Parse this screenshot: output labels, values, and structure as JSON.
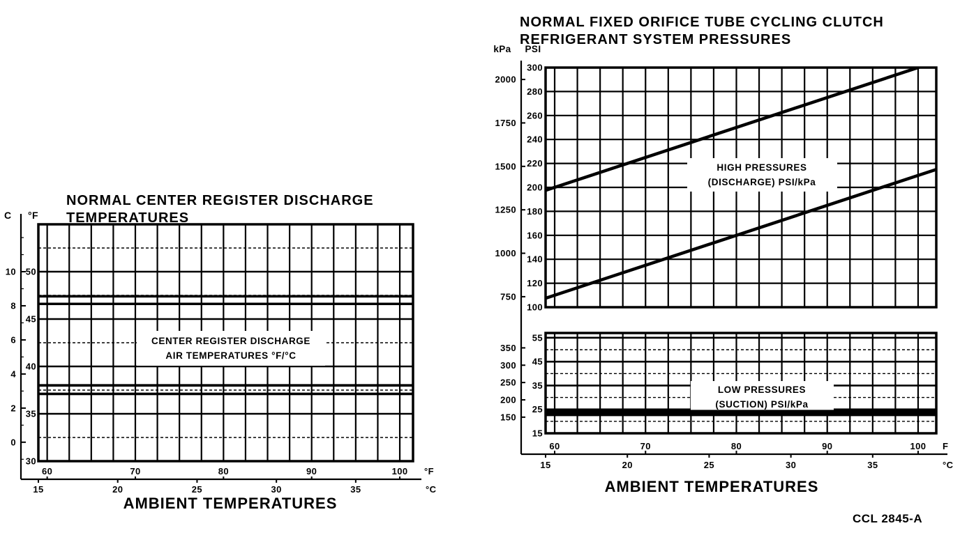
{
  "page": {
    "figure_code": "CCL 2845-A",
    "background": "#ffffff",
    "ink_color": "#000000"
  },
  "chart_data": [
    {
      "id": "center-register-discharge-temperatures",
      "type": "line",
      "title": "NORMAL CENTER REGISTER DISCHARGE TEMPERATURES",
      "title_lines": [
        "NORMAL CENTER REGISTER DISCHARGE",
        "TEMPERATURES"
      ],
      "xlabel": "AMBIENT TEMPERATURES",
      "annotation_lines": [
        "CENTER REGISTER DISCHARGE",
        "AIR TEMPERATURES °F/°C"
      ],
      "grid": true,
      "legend": "none",
      "x_axis": {
        "primary_unit": "°F",
        "secondary_unit": "°C",
        "ticks_f": [
          60,
          70,
          80,
          90,
          100
        ],
        "ticks_c": [
          15,
          20,
          25,
          30,
          35
        ],
        "range_f": [
          59,
          101.5
        ],
        "grid_step_f": 2.5
      },
      "y_axis": {
        "header_left": "C",
        "header_right": "°F",
        "ticks_f": [
          50,
          45,
          40,
          35,
          30
        ],
        "ticks_c": [
          10,
          8,
          6,
          4,
          2,
          0
        ],
        "range_f": [
          30,
          55
        ],
        "grid_step_f": 2.5
      },
      "series": [
        {
          "name": "discharge-air-temp-upper-band",
          "style": "double-line",
          "y_f": [
            47.4,
            46.6
          ],
          "approx_c": 8
        },
        {
          "name": "discharge-air-temp-lower-band",
          "style": "double-line",
          "y_f": [
            38.0,
            37.1
          ],
          "approx_c": 3
        }
      ]
    },
    {
      "id": "high-pressures-discharge",
      "type": "line",
      "title": "NORMAL FIXED ORIFICE TUBE CYCLING CLUTCH REFRIGERANT SYSTEM PRESSURES",
      "title_lines": [
        "NORMAL FIXED ORIFICE TUBE CYCLING CLUTCH",
        "REFRIGERANT SYSTEM PRESSURES"
      ],
      "xlabel": "AMBIENT TEMPERATURES",
      "annotation_lines": [
        "HIGH PRESSURES",
        "(DISCHARGE) PSI/kPa"
      ],
      "grid": true,
      "y_headers": {
        "left": "kPa",
        "right": "PSI"
      },
      "x_axis": {
        "primary_unit": "F",
        "secondary_unit": "°C",
        "ticks_f": [
          60,
          70,
          80,
          90,
          100
        ],
        "ticks_c": [
          15,
          20,
          25,
          30,
          35
        ],
        "range_f": [
          59,
          102
        ],
        "grid_step_f": 2.5
      },
      "y_axis": {
        "ticks_psi": [
          300,
          280,
          260,
          240,
          220,
          200,
          180,
          160,
          140,
          120,
          100
        ],
        "ticks_kpa": [
          2000,
          1750,
          1500,
          1250,
          1000,
          750
        ],
        "range_psi": [
          100,
          300
        ],
        "grid_step_psi": 20
      },
      "series": [
        {
          "name": "high-pressure-upper-limit",
          "points_f_psi": [
            [
              60,
              200
            ],
            [
              100,
              300
            ]
          ]
        },
        {
          "name": "high-pressure-lower-limit",
          "points_f_psi": [
            [
              60,
              110
            ],
            [
              100,
              210
            ]
          ]
        }
      ]
    },
    {
      "id": "low-pressures-suction",
      "type": "line",
      "annotation_lines": [
        "LOW PRESSURES",
        "(SUCTION) PSI/kPa"
      ],
      "xlabel": "AMBIENT TEMPERATURES",
      "grid": true,
      "x_axis": {
        "primary_unit": "F",
        "secondary_unit": "°C",
        "ticks_f": [
          60,
          70,
          80,
          90,
          100
        ],
        "ticks_c": [
          15,
          20,
          25,
          30,
          35
        ],
        "range_f": [
          59,
          102
        ],
        "grid_step_f": 2.5
      },
      "y_axis": {
        "ticks_psi": [
          55,
          45,
          35,
          25,
          15
        ],
        "ticks_kpa": [
          350,
          300,
          250,
          200,
          150
        ],
        "range_psi": [
          15,
          57
        ],
        "grid_step_psi": 5
      },
      "series": [
        {
          "name": "low-pressure-band",
          "style": "thick-band",
          "psi_range": [
            22,
            25
          ]
        }
      ]
    }
  ]
}
